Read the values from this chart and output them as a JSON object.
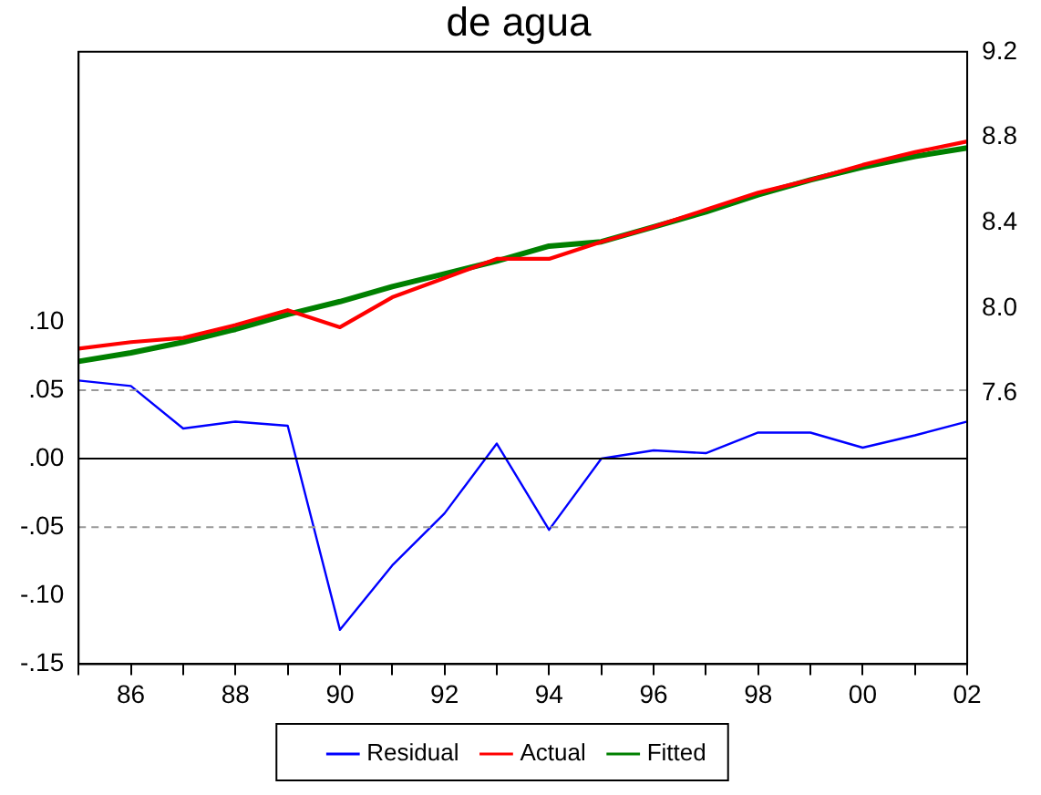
{
  "chart_data": {
    "type": "line",
    "title": "de agua",
    "categories": [
      null,
      "86",
      null,
      "88",
      null,
      "90",
      null,
      "92",
      null,
      "94",
      null,
      "96",
      null,
      "98",
      null,
      "00",
      null,
      "02"
    ],
    "series": [
      {
        "name": "Residual",
        "color": "#0000ff",
        "axis": "y",
        "values": [
          0.057,
          0.053,
          0.022,
          0.027,
          0.024,
          -0.125,
          -0.078,
          -0.04,
          0.011,
          -0.052,
          0.0,
          0.006,
          0.004,
          0.019,
          0.019,
          0.008,
          0.017,
          0.027
        ]
      },
      {
        "name": "Actual",
        "color": "#ff0000",
        "axis": "y2",
        "values": [
          7.81,
          7.84,
          7.86,
          7.92,
          7.99,
          7.91,
          8.05,
          8.14,
          8.23,
          8.23,
          8.31,
          8.38,
          8.46,
          8.54,
          8.6,
          8.67,
          8.73,
          8.78
        ]
      },
      {
        "name": "Fitted",
        "color": "#008000",
        "axis": "y2",
        "values": [
          7.75,
          7.79,
          7.84,
          7.9,
          7.97,
          8.03,
          8.1,
          8.16,
          8.22,
          8.29,
          8.31,
          8.38,
          8.45,
          8.53,
          8.6,
          8.66,
          8.71,
          8.75
        ]
      }
    ],
    "ylim": [
      -0.15,
      0.297
    ],
    "yticks": [
      {
        "value": -0.15,
        "label": "-.15"
      },
      {
        "value": -0.1,
        "label": "-.10"
      },
      {
        "value": -0.05,
        "label": "-.05"
      },
      {
        "value": 0,
        "label": ".00"
      },
      {
        "value": 0.05,
        "label": ".05"
      },
      {
        "value": 0.1,
        "label": ".10"
      }
    ],
    "y2lim": [
      6.332,
      9.2
    ],
    "y2ticks": [
      7.6,
      {
        "value": 8.0,
        "label": "8.0"
      },
      8.4,
      8.8,
      9.2
    ],
    "ref_lines": [
      {
        "axis": "y",
        "value": 0.05,
        "color": "#999999",
        "line_style": "dashed"
      },
      {
        "axis": "y",
        "value": 0,
        "color": "#000000",
        "line_style": "solid"
      },
      {
        "axis": "y",
        "value": -0.05,
        "color": "#999999",
        "line_style": "dashed"
      }
    ],
    "grid": false,
    "legend": "bottom",
    "marker": "none",
    "line_style": "solid"
  }
}
